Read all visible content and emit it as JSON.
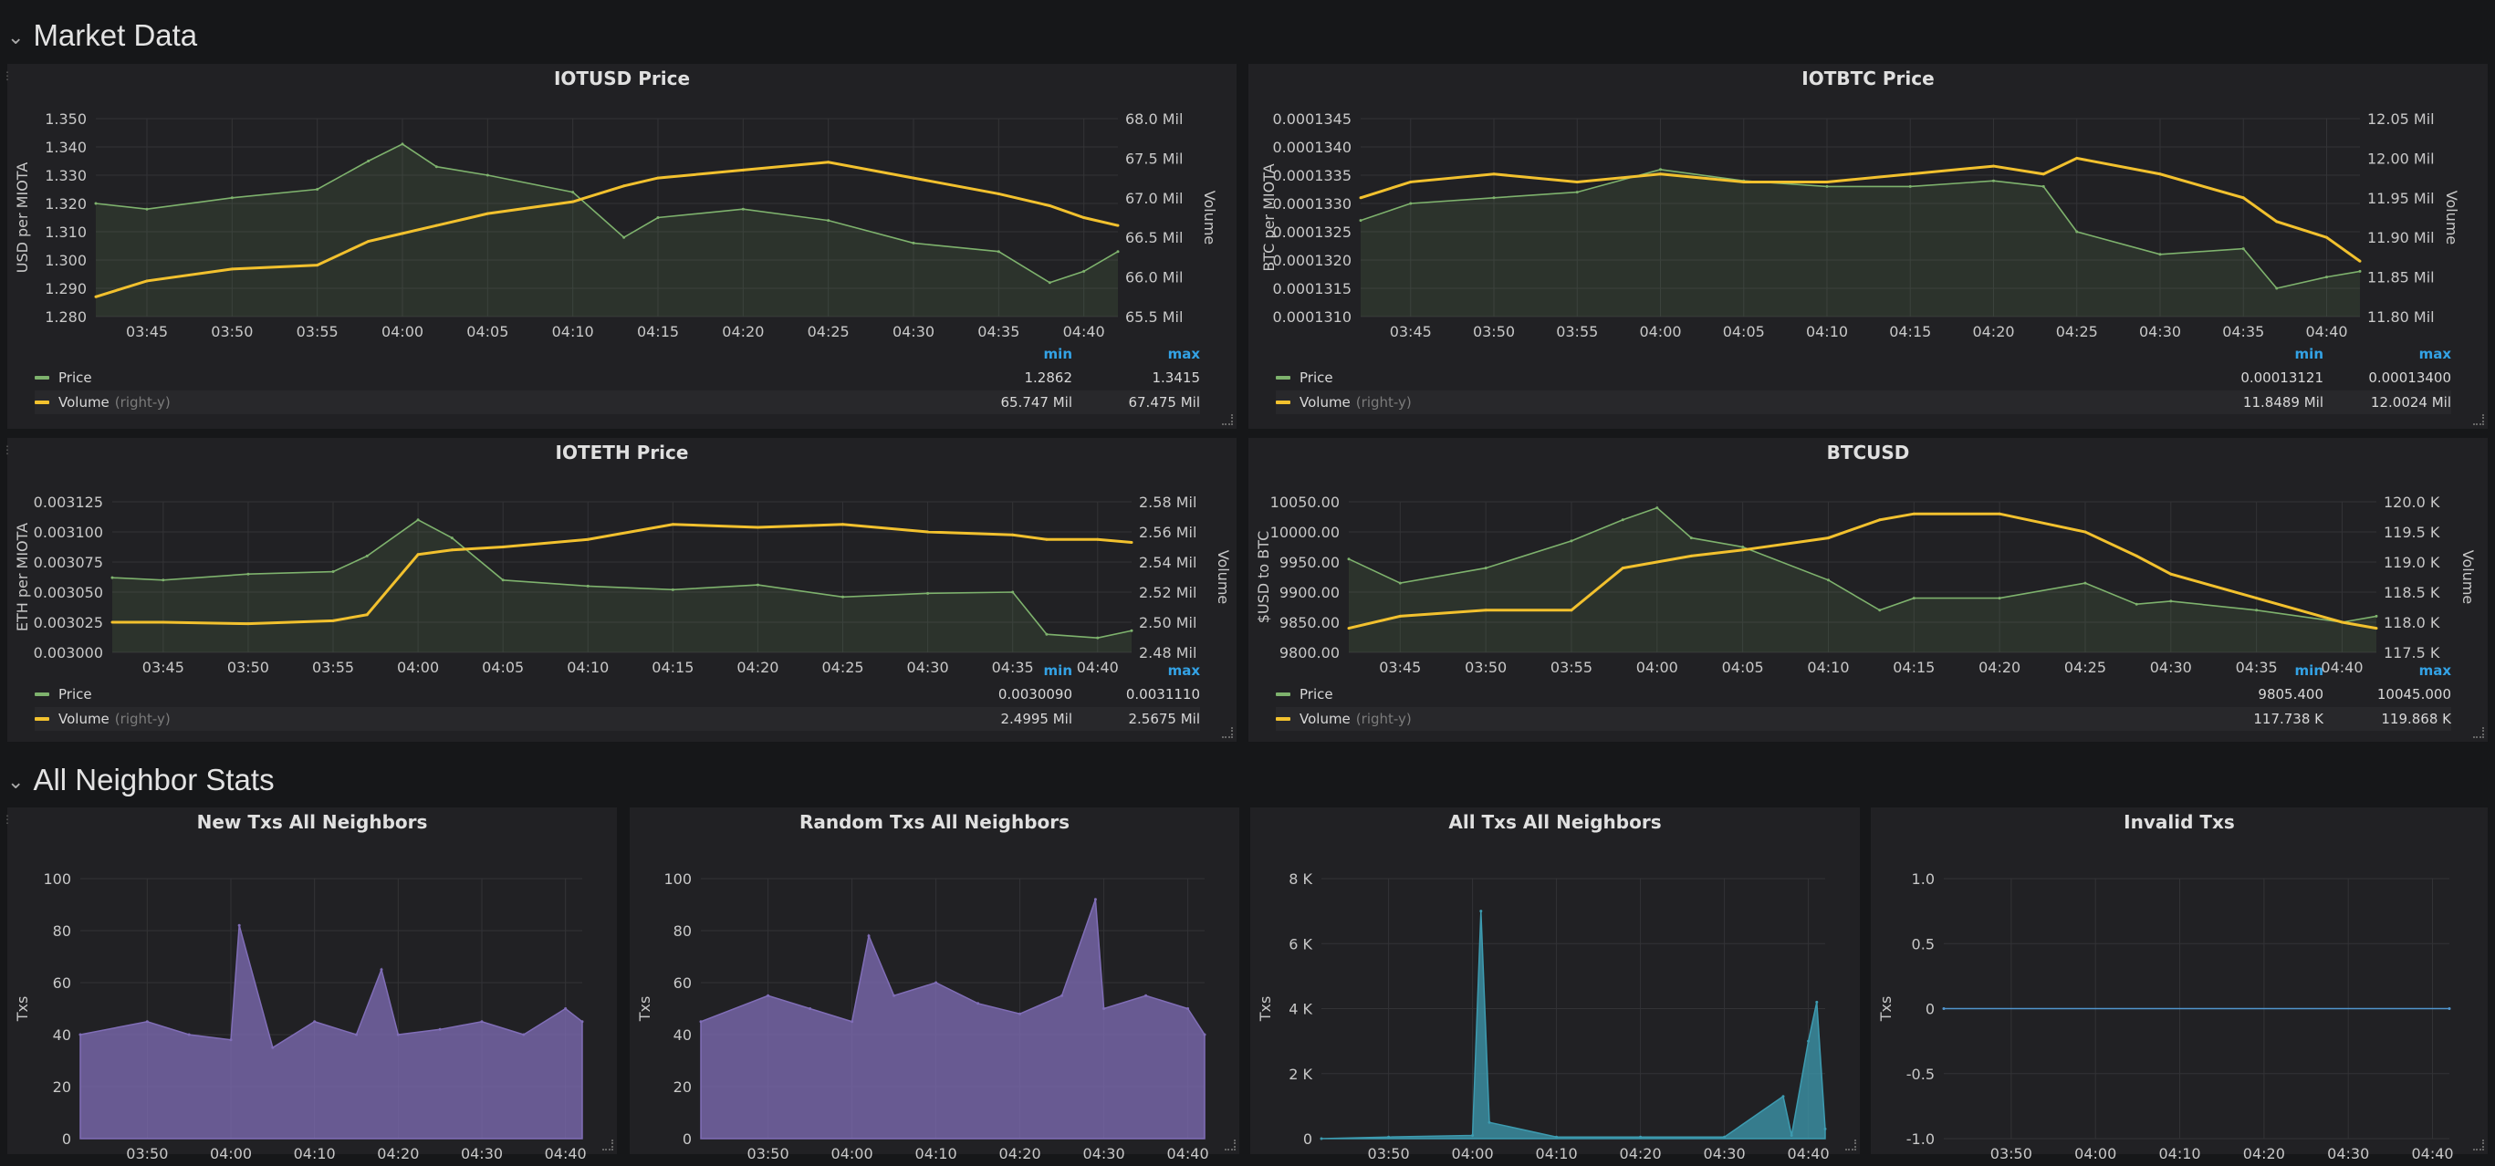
{
  "rows": {
    "market": {
      "title": "Market Data"
    },
    "neighbors": {
      "title": "All Neighbor Stats"
    }
  },
  "colors": {
    "price": "#7eb26d",
    "volume": "#f2c12e",
    "grid": "#333336",
    "axis": "#c8c8c8",
    "legend_header": "#33a2e5"
  },
  "panels": {
    "iotusd": {
      "title": "IOTUSD Price",
      "left_label": "USD per MIOTA",
      "right_label": "Volume",
      "left_ticks": [
        "1.350",
        "1.340",
        "1.330",
        "1.320",
        "1.310",
        "1.300",
        "1.290",
        "1.280"
      ],
      "right_ticks": [
        "68.0 Mil",
        "67.5 Mil",
        "67.0 Mil",
        "66.5 Mil",
        "66.0 Mil",
        "65.5 Mil"
      ],
      "x_ticks": [
        "03:45",
        "03:50",
        "03:55",
        "04:00",
        "04:05",
        "04:10",
        "04:15",
        "04:20",
        "04:25",
        "04:30",
        "04:35",
        "04:40"
      ],
      "legend": {
        "min_header": "min",
        "max_header": "max",
        "series": [
          {
            "name": "Price",
            "suffix": "",
            "min": "1.2862",
            "max": "1.3415"
          },
          {
            "name": "Volume",
            "suffix": "(right-y)",
            "min": "65.747 Mil",
            "max": "67.475 Mil"
          }
        ]
      }
    },
    "iotbtc": {
      "title": "IOTBTC Price",
      "left_label": "BTC per MIOTA",
      "right_label": "Volume",
      "left_ticks": [
        "0.0001345",
        "0.0001340",
        "0.0001335",
        "0.0001330",
        "0.0001325",
        "0.0001320",
        "0.0001315",
        "0.0001310"
      ],
      "right_ticks": [
        "12.05 Mil",
        "12.00 Mil",
        "11.95 Mil",
        "11.90 Mil",
        "11.85 Mil",
        "11.80 Mil"
      ],
      "x_ticks": [
        "03:45",
        "03:50",
        "03:55",
        "04:00",
        "04:05",
        "04:10",
        "04:15",
        "04:20",
        "04:25",
        "04:30",
        "04:35",
        "04:40"
      ],
      "legend": {
        "min_header": "min",
        "max_header": "max",
        "series": [
          {
            "name": "Price",
            "suffix": "",
            "min": "0.00013121",
            "max": "0.00013400"
          },
          {
            "name": "Volume",
            "suffix": "(right-y)",
            "min": "11.8489 Mil",
            "max": "12.0024 Mil"
          }
        ]
      }
    },
    "ioteth": {
      "title": "IOTETH Price",
      "left_label": "ETH per MIOTA",
      "right_label": "Volume",
      "left_ticks": [
        "0.003125",
        "0.003100",
        "0.003075",
        "0.003050",
        "0.003025",
        "0.003000"
      ],
      "right_ticks": [
        "2.58 Mil",
        "2.56 Mil",
        "2.54 Mil",
        "2.52 Mil",
        "2.50 Mil",
        "2.48 Mil"
      ],
      "x_ticks": [
        "03:45",
        "03:50",
        "03:55",
        "04:00",
        "04:05",
        "04:10",
        "04:15",
        "04:20",
        "04:25",
        "04:30",
        "04:35",
        "04:40"
      ],
      "legend": {
        "min_header": "min",
        "max_header": "max",
        "series": [
          {
            "name": "Price",
            "suffix": "",
            "min": "0.0030090",
            "max": "0.0031110"
          },
          {
            "name": "Volume",
            "suffix": "(right-y)",
            "min": "2.4995 Mil",
            "max": "2.5675 Mil"
          }
        ]
      }
    },
    "btcusd": {
      "title": "BTCUSD",
      "left_label": "$USD to BTC",
      "right_label": "Volume",
      "left_ticks": [
        "10050.00",
        "10000.00",
        "9950.00",
        "9900.00",
        "9850.00",
        "9800.00"
      ],
      "right_ticks": [
        "120.0 K",
        "119.5 K",
        "119.0 K",
        "118.5 K",
        "118.0 K",
        "117.5 K"
      ],
      "x_ticks": [
        "03:45",
        "03:50",
        "03:55",
        "04:00",
        "04:05",
        "04:10",
        "04:15",
        "04:20",
        "04:25",
        "04:30",
        "04:35",
        "04:40"
      ],
      "legend": {
        "min_header": "min",
        "max_header": "max",
        "series": [
          {
            "name": "Price",
            "suffix": "",
            "min": "9805.400",
            "max": "10045.000"
          },
          {
            "name": "Volume",
            "suffix": "(right-y)",
            "min": "117.738 K",
            "max": "119.868 K"
          }
        ]
      }
    },
    "newtxs": {
      "title": "New Txs All Neighbors",
      "left_label": "Txs",
      "left_ticks": [
        "100",
        "80",
        "60",
        "40",
        "20",
        "0"
      ],
      "x_ticks": [
        "03:50",
        "04:00",
        "04:10",
        "04:20",
        "04:30",
        "04:40"
      ]
    },
    "randomtxs": {
      "title": "Random Txs All Neighbors",
      "left_label": "Txs",
      "left_ticks": [
        "100",
        "80",
        "60",
        "40",
        "20",
        "0"
      ],
      "x_ticks": [
        "03:50",
        "04:00",
        "04:10",
        "04:20",
        "04:30",
        "04:40"
      ]
    },
    "alltxs": {
      "title": "All Txs All Neighbors",
      "left_label": "Txs",
      "left_ticks": [
        "8 K",
        "6 K",
        "4 K",
        "2 K",
        "0"
      ],
      "x_ticks": [
        "03:50",
        "04:00",
        "04:10",
        "04:20",
        "04:30",
        "04:40"
      ]
    },
    "invalid": {
      "title": "Invalid Txs",
      "left_label": "Txs",
      "left_ticks": [
        "1.0",
        "0.5",
        "0",
        "-0.5",
        "-1.0"
      ],
      "x_ticks": [
        "03:50",
        "04:00",
        "04:10",
        "04:20",
        "04:30",
        "04:40"
      ]
    }
  },
  "chart_data": [
    {
      "type": "line",
      "title": "IOTUSD Price",
      "xlabel": "",
      "ylabel": "USD per MIOTA",
      "y2label": "Volume",
      "x": [
        "03:42",
        "03:45",
        "03:50",
        "03:55",
        "03:58",
        "04:00",
        "04:02",
        "04:05",
        "04:10",
        "04:13",
        "04:15",
        "04:20",
        "04:25",
        "04:30",
        "04:35",
        "04:38",
        "04:40",
        "04:42"
      ],
      "ylim": [
        1.28,
        1.35
      ],
      "y2lim": [
        65.5,
        68.0
      ],
      "series": [
        {
          "name": "Price",
          "axis": "left",
          "values": [
            1.32,
            1.318,
            1.322,
            1.325,
            1.335,
            1.341,
            1.333,
            1.33,
            1.324,
            1.308,
            1.315,
            1.318,
            1.314,
            1.306,
            1.303,
            1.292,
            1.296,
            1.303
          ]
        },
        {
          "name": "Volume",
          "axis": "right",
          "values": [
            65.75,
            65.95,
            66.1,
            66.15,
            66.45,
            66.55,
            66.65,
            66.8,
            66.95,
            67.15,
            67.25,
            67.35,
            67.45,
            67.25,
            67.05,
            66.9,
            66.75,
            66.65
          ]
        }
      ]
    },
    {
      "type": "line",
      "title": "IOTBTC Price",
      "xlabel": "",
      "ylabel": "BTC per MIOTA",
      "y2label": "Volume",
      "x": [
        "03:42",
        "03:45",
        "03:50",
        "03:55",
        "04:00",
        "04:05",
        "04:10",
        "04:15",
        "04:20",
        "04:23",
        "04:25",
        "04:30",
        "04:35",
        "04:37",
        "04:40",
        "04:42"
      ],
      "ylim": [
        0.000131,
        0.0001345
      ],
      "y2lim": [
        11.8,
        12.05
      ],
      "series": [
        {
          "name": "Price",
          "axis": "left",
          "values": [
            0.0001327,
            0.000133,
            0.0001331,
            0.0001332,
            0.0001336,
            0.0001334,
            0.0001333,
            0.0001333,
            0.0001334,
            0.0001333,
            0.0001325,
            0.0001321,
            0.0001322,
            0.0001315,
            0.0001317,
            0.0001318
          ]
        },
        {
          "name": "Volume",
          "axis": "right",
          "values": [
            11.95,
            11.97,
            11.98,
            11.97,
            11.98,
            11.97,
            11.97,
            11.98,
            11.99,
            11.98,
            12.0,
            11.98,
            11.95,
            11.92,
            11.9,
            11.87
          ]
        }
      ]
    },
    {
      "type": "line",
      "title": "IOTETH Price",
      "xlabel": "",
      "ylabel": "ETH per MIOTA",
      "y2label": "Volume",
      "x": [
        "03:42",
        "03:45",
        "03:50",
        "03:55",
        "03:57",
        "04:00",
        "04:02",
        "04:05",
        "04:10",
        "04:15",
        "04:20",
        "04:25",
        "04:30",
        "04:35",
        "04:37",
        "04:40",
        "04:42"
      ],
      "ylim": [
        0.003,
        0.003125
      ],
      "y2lim": [
        2.48,
        2.58
      ],
      "series": [
        {
          "name": "Price",
          "axis": "left",
          "values": [
            0.003062,
            0.00306,
            0.003065,
            0.003067,
            0.00308,
            0.00311,
            0.003095,
            0.00306,
            0.003055,
            0.003052,
            0.003056,
            0.003046,
            0.003049,
            0.00305,
            0.003015,
            0.003012,
            0.003018
          ]
        },
        {
          "name": "Volume",
          "axis": "right",
          "values": [
            2.5,
            2.5,
            2.499,
            2.501,
            2.505,
            2.545,
            2.548,
            2.55,
            2.555,
            2.565,
            2.563,
            2.565,
            2.56,
            2.558,
            2.555,
            2.555,
            2.553
          ]
        }
      ]
    },
    {
      "type": "line",
      "title": "BTCUSD",
      "xlabel": "",
      "ylabel": "$USD to BTC",
      "y2label": "Volume",
      "x": [
        "03:42",
        "03:45",
        "03:50",
        "03:55",
        "03:58",
        "04:00",
        "04:02",
        "04:05",
        "04:10",
        "04:13",
        "04:15",
        "04:20",
        "04:25",
        "04:28",
        "04:30",
        "04:35",
        "04:40",
        "04:42"
      ],
      "ylim": [
        9800,
        10050
      ],
      "y2lim": [
        117.5,
        120.0
      ],
      "series": [
        {
          "name": "Price",
          "axis": "left",
          "values": [
            9955,
            9915,
            9940,
            9985,
            10020,
            10040,
            9990,
            9975,
            9920,
            9870,
            9890,
            9890,
            9915,
            9880,
            9885,
            9870,
            9850,
            9860
          ]
        },
        {
          "name": "Volume",
          "axis": "right",
          "values": [
            117.9,
            118.1,
            118.2,
            118.2,
            118.9,
            119.0,
            119.1,
            119.2,
            119.4,
            119.7,
            119.8,
            119.8,
            119.5,
            119.1,
            118.8,
            118.4,
            118.0,
            117.9
          ]
        }
      ]
    },
    {
      "type": "area",
      "title": "New Txs All Neighbors",
      "ylabel": "Txs",
      "ylim": [
        0,
        100
      ],
      "x": [
        "03:42",
        "03:50",
        "03:55",
        "04:00",
        "04:01",
        "04:05",
        "04:10",
        "04:15",
        "04:18",
        "04:20",
        "04:25",
        "04:30",
        "04:35",
        "04:40",
        "04:42"
      ],
      "series": [
        {
          "name": "",
          "values": [
            40,
            45,
            40,
            38,
            82,
            35,
            45,
            40,
            65,
            40,
            42,
            45,
            40,
            50,
            45
          ]
        }
      ]
    },
    {
      "type": "area",
      "title": "Random Txs All Neighbors",
      "ylabel": "Txs",
      "ylim": [
        0,
        100
      ],
      "x": [
        "03:42",
        "03:50",
        "03:55",
        "04:00",
        "04:02",
        "04:05",
        "04:10",
        "04:15",
        "04:20",
        "04:25",
        "04:29",
        "04:30",
        "04:35",
        "04:40",
        "04:42"
      ],
      "series": [
        {
          "name": "",
          "values": [
            45,
            55,
            50,
            45,
            78,
            55,
            60,
            52,
            48,
            55,
            92,
            50,
            55,
            50,
            40
          ]
        }
      ]
    },
    {
      "type": "area",
      "title": "All Txs All Neighbors",
      "ylabel": "Txs",
      "ylim": [
        0,
        8000
      ],
      "x": [
        "03:42",
        "03:50",
        "04:00",
        "04:01",
        "04:02",
        "04:10",
        "04:20",
        "04:30",
        "04:37",
        "04:38",
        "04:40",
        "04:41",
        "04:42"
      ],
      "series": [
        {
          "name": "",
          "values": [
            0,
            50,
            100,
            7000,
            500,
            50,
            50,
            50,
            1300,
            100,
            3000,
            4200,
            300
          ]
        }
      ]
    },
    {
      "type": "line",
      "title": "Invalid Txs",
      "ylabel": "Txs",
      "ylim": [
        -1.0,
        1.0
      ],
      "x": [
        "03:42",
        "04:42"
      ],
      "series": [
        {
          "name": "",
          "values": [
            0,
            0
          ]
        }
      ]
    }
  ]
}
